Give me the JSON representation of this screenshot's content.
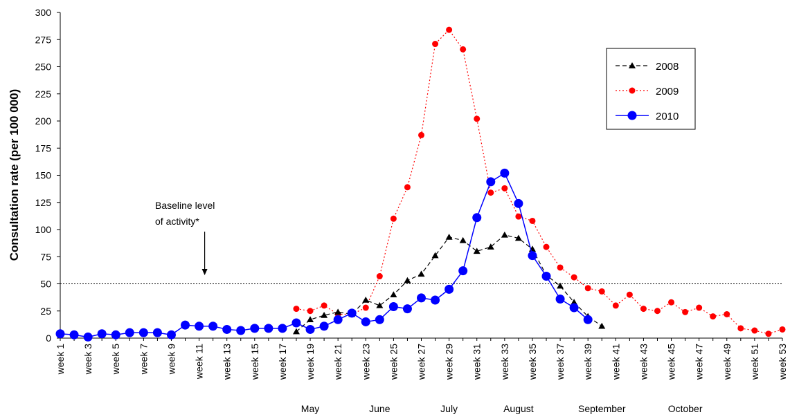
{
  "chart_data": {
    "type": "line",
    "title": "",
    "xlabel": "",
    "ylabel": "Consultation rate (per 100 000)",
    "ylim": [
      0,
      300
    ],
    "yticks": [
      0,
      25,
      50,
      75,
      100,
      125,
      150,
      175,
      200,
      225,
      250,
      275,
      300
    ],
    "xticks": [
      "week 1",
      "week 3",
      "week 5",
      "week 7",
      "week 9",
      "week 11",
      "week 13",
      "week 15",
      "week 17",
      "week 19",
      "week 21",
      "week 23",
      "week 25",
      "week 27",
      "week 29",
      "week 31",
      "week 33",
      "week 35",
      "week 37",
      "week 39",
      "week 41",
      "week 43",
      "week 45",
      "week 47",
      "week 49",
      "week 51",
      "week 53"
    ],
    "months": [
      {
        "label": "May",
        "week": 19
      },
      {
        "label": "June",
        "week": 24
      },
      {
        "label": "July",
        "week": 29
      },
      {
        "label": "August",
        "week": 34
      },
      {
        "label": "September",
        "week": 40
      },
      {
        "label": "October",
        "week": 46
      }
    ],
    "baseline": {
      "value": 50,
      "annotation_line1": "Baseline level",
      "annotation_line2": "of activity*",
      "arrow_week": 11.4
    },
    "legend_position": "top-right",
    "series": [
      {
        "name": "2008",
        "color": "#000000",
        "style": "dashed",
        "marker": "triangle",
        "x": [
          18,
          19,
          20,
          21,
          22,
          23,
          24,
          25,
          26,
          27,
          28,
          29,
          30,
          31,
          32,
          33,
          34,
          35,
          36,
          37,
          38,
          39,
          40
        ],
        "y": [
          6,
          17,
          21,
          24,
          22,
          35,
          30,
          40,
          53,
          59,
          76,
          93,
          90,
          80,
          84,
          95,
          92,
          82,
          58,
          48,
          33,
          20,
          11
        ]
      },
      {
        "name": "2009",
        "color": "#ff0000",
        "style": "dotted",
        "marker": "circle",
        "x": [
          18,
          19,
          20,
          21,
          22,
          23,
          24,
          25,
          26,
          27,
          28,
          29,
          30,
          31,
          32,
          33,
          34,
          35,
          36,
          37,
          38,
          39,
          40,
          41,
          42,
          43,
          44,
          45,
          46,
          47,
          48,
          49,
          50,
          51,
          52,
          53
        ],
        "y": [
          27,
          25,
          30,
          22,
          22,
          28,
          57,
          110,
          139,
          187,
          271,
          284,
          266,
          202,
          134,
          138,
          112,
          108,
          84,
          65,
          56,
          46,
          43,
          30,
          40,
          27,
          25,
          33,
          24,
          28,
          20,
          22,
          9,
          7,
          4,
          8
        ]
      },
      {
        "name": "2010",
        "color": "#0000ff",
        "style": "solid",
        "marker": "circle",
        "x": [
          1,
          2,
          3,
          4,
          5,
          6,
          7,
          8,
          9,
          10,
          11,
          12,
          13,
          14,
          15,
          16,
          17,
          18,
          19,
          20,
          21,
          22,
          23,
          24,
          25,
          26,
          27,
          28,
          29,
          30,
          31,
          32,
          33,
          34,
          35,
          36,
          37,
          38,
          39
        ],
        "y": [
          4,
          3,
          1,
          4,
          3,
          5,
          5,
          5,
          3,
          12,
          11,
          11,
          8,
          7,
          9,
          9,
          9,
          14,
          8,
          11,
          17,
          23,
          15,
          17,
          29,
          27,
          37,
          35,
          45,
          62,
          111,
          144,
          152,
          124,
          76,
          57,
          36,
          28,
          17
        ]
      }
    ]
  }
}
